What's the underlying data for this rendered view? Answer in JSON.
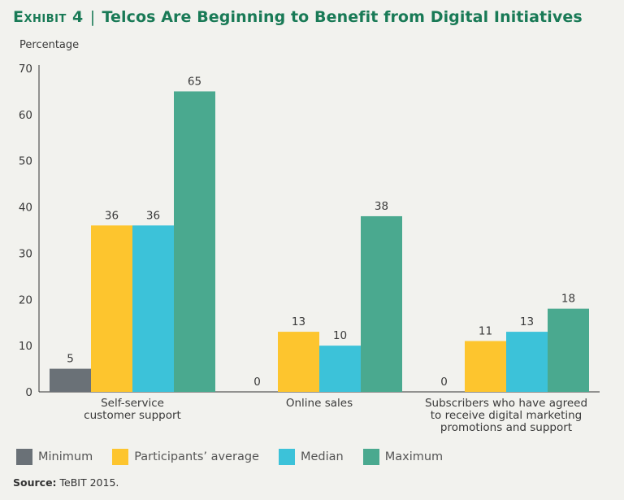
{
  "header": {
    "exhibit": "Exhibit 4",
    "title": "Telcos Are Beginning to Benefit from Digital Initiatives"
  },
  "footer": {
    "source_label": "Source:",
    "source_text": "TeBIT 2015."
  },
  "chart_data": {
    "type": "bar",
    "ylabel": "Percentage",
    "xlabel": "",
    "ylim": [
      0,
      70
    ],
    "yticks": [
      0,
      10,
      20,
      30,
      40,
      50,
      60,
      70
    ],
    "grid": false,
    "legend_position": "bottom",
    "categories": [
      [
        "Self-service",
        "customer support"
      ],
      [
        "Online sales"
      ],
      [
        "Subscribers who have agreed",
        "to receive digital marketing",
        "promotions and support"
      ]
    ],
    "series": [
      {
        "name": "Minimum",
        "color": "#6a7177",
        "values": [
          5,
          0,
          0
        ]
      },
      {
        "name": "Participants’ average",
        "color": "#fdc52e",
        "values": [
          36,
          13,
          11
        ]
      },
      {
        "name": "Median",
        "color": "#3cc2d9",
        "values": [
          36,
          10,
          13
        ]
      },
      {
        "name": "Maximum",
        "color": "#4aa98f",
        "values": [
          65,
          38,
          18
        ]
      }
    ]
  }
}
